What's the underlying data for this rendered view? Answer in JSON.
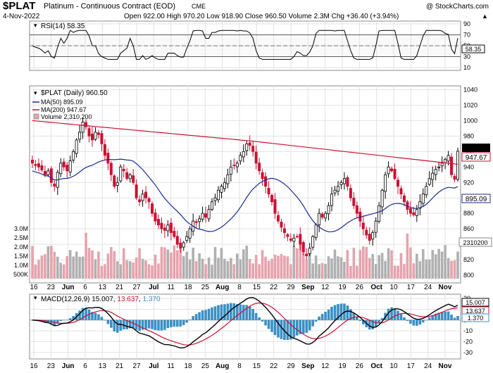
{
  "header": {
    "symbol": "$PLAT",
    "description": "Platinum - Continuous Contract (EOD)",
    "exchange": "CME",
    "watermark": "@ StockCharts.com",
    "date": "4-Nov-2022",
    "ohlc_line": "Open 922.00   High 970.20   Low 918.90   Close 960.50   Volume 2.3M   Chg +36.40 (+3.94%)",
    "chg_arrow": "▲"
  },
  "rsi_panel": {
    "label": "RSI(14) 58.35",
    "ticks": [
      "90",
      "70",
      "50",
      "30",
      "10"
    ],
    "last_label": "58.35"
  },
  "price_panel": {
    "label": "$PLAT (Daily) 960.50",
    "ma50_label": "MA(50) 895.09",
    "ma200_label": "MA(200) 947.67",
    "volume_label": "Volume 2,310,200",
    "price_ticks": [
      "1040",
      "1020",
      "1000",
      "980",
      "960",
      "940",
      "920",
      "900",
      "880",
      "860",
      "840",
      "820",
      "800"
    ],
    "vol_ticks": [
      "3.0M",
      "2.5M",
      "2.0M",
      "1.5M",
      "1.0M",
      "500K"
    ],
    "tags": {
      "close": "960.50",
      "ma200": "947.67",
      "ma50": "895.09",
      "volume": "2310200"
    }
  },
  "macd_panel": {
    "label_prefix": "MACD(12,26,9)",
    "macd": "15.007",
    "signal": "13.637",
    "hist": "1.370",
    "ticks": [
      "20",
      "10",
      "0",
      "-10",
      "-20",
      "-30"
    ],
    "tags": {
      "macd": "15.007",
      "signal": "13.637",
      "hist": "1.370"
    }
  },
  "x_labels": [
    {
      "t": "16",
      "b": false
    },
    {
      "t": "23",
      "b": false
    },
    {
      "t": "Jun",
      "b": true
    },
    {
      "t": "6",
      "b": false
    },
    {
      "t": "13",
      "b": false
    },
    {
      "t": "21",
      "b": false
    },
    {
      "t": "27",
      "b": false
    },
    {
      "t": "Jul",
      "b": true
    },
    {
      "t": "11",
      "b": false
    },
    {
      "t": "18",
      "b": false
    },
    {
      "t": "25",
      "b": false
    },
    {
      "t": "Aug",
      "b": true
    },
    {
      "t": "8",
      "b": false
    },
    {
      "t": "15",
      "b": false
    },
    {
      "t": "22",
      "b": false
    },
    {
      "t": "29",
      "b": false
    },
    {
      "t": "Sep",
      "b": true
    },
    {
      "t": "12",
      "b": false
    },
    {
      "t": "19",
      "b": false
    },
    {
      "t": "26",
      "b": false
    },
    {
      "t": "Oct",
      "b": true
    },
    {
      "t": "10",
      "b": false
    },
    {
      "t": "17",
      "b": false
    },
    {
      "t": "24",
      "b": false
    },
    {
      "t": "Nov",
      "b": true
    }
  ],
  "colors": {
    "up": "#000000",
    "down": "#cc1133",
    "ma50": "#1a2a8c",
    "ma200": "#cc1133",
    "vol_up": "#b0b0b0",
    "vol_down": "#e6a3ad",
    "macd_hist": "#3a8fc4",
    "signal": "#cc1133",
    "rsi_band": "#cccccc",
    "accent": "#1a2a8c"
  },
  "chart_data": {
    "type": "candlestick",
    "symbol": "$PLAT",
    "period": "Daily",
    "ylim": [
      790,
      1045
    ],
    "candles_close": [
      945,
      942,
      940,
      936,
      930,
      935,
      920,
      915,
      933,
      945,
      940,
      935,
      948,
      960,
      975,
      985,
      998,
      992,
      980,
      975,
      985,
      982,
      970,
      955,
      945,
      930,
      915,
      920,
      940,
      935,
      925,
      930,
      920,
      900,
      895,
      905,
      900,
      895,
      880,
      870,
      865,
      860,
      858,
      865,
      855,
      850,
      840,
      835,
      842,
      850,
      860,
      870,
      868,
      873,
      880,
      875,
      885,
      895,
      900,
      910,
      915,
      920,
      930,
      940,
      942,
      945,
      955,
      960,
      970,
      968,
      960,
      945,
      935,
      925,
      915,
      905,
      895,
      880,
      870,
      862,
      855,
      850,
      845,
      848,
      850,
      840,
      830,
      825,
      835,
      850,
      865,
      880,
      875,
      880,
      890,
      905,
      910,
      915,
      920,
      925,
      915,
      900,
      890,
      880,
      870,
      860,
      852,
      845,
      855,
      870,
      890,
      910,
      930,
      940,
      935,
      925,
      915,
      905,
      895,
      885,
      880,
      878,
      885,
      895,
      905,
      915,
      925,
      932,
      937,
      940,
      945,
      950,
      955,
      930,
      924,
      960.5
    ],
    "ma50_last": 895.09,
    "ma200_last": 947.67,
    "volume_last": 2310200,
    "rsi_last": 58.35,
    "macd_last": 15.007,
    "signal_last": 13.637,
    "hist_last": 1.37
  }
}
